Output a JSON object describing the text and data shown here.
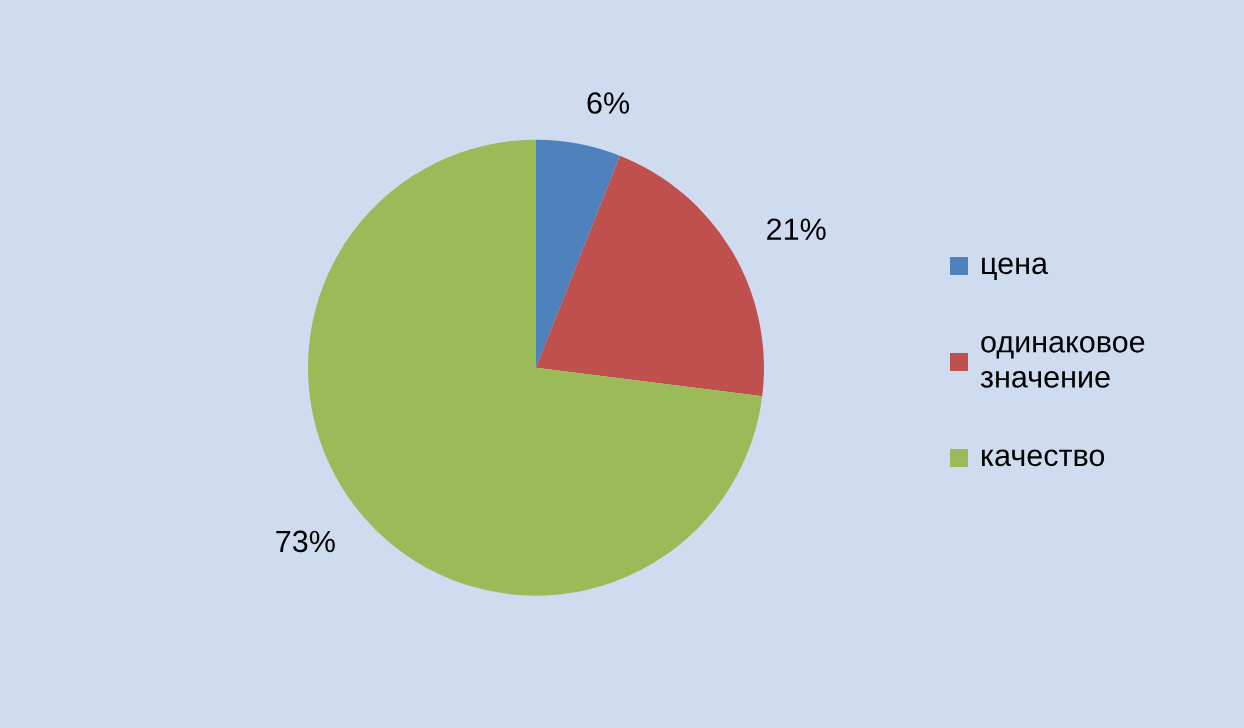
{
  "chart_data": {
    "type": "pie",
    "categories": [
      "цена",
      "одинаковое значение",
      "качество"
    ],
    "values": [
      6,
      21,
      73
    ],
    "colors": [
      "#4f81bd",
      "#c0504d",
      "#9bbb59"
    ],
    "value_labels": [
      "6%",
      "21%",
      "73%"
    ],
    "legend": "right"
  }
}
